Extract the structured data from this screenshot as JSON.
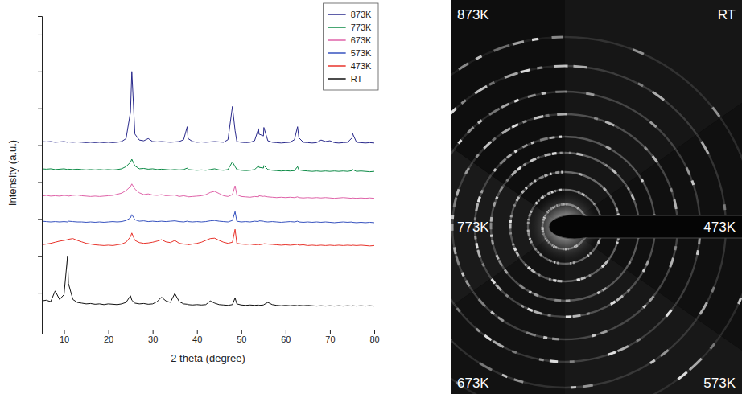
{
  "chart_data": {
    "type": "line",
    "xlabel": "2 theta (degree)",
    "ylabel": "Intensity (a.u.)",
    "xlim": [
      5,
      80
    ],
    "xticks": [
      10,
      20,
      30,
      40,
      50,
      60,
      70,
      80
    ],
    "ylim": [
      0,
      8.5
    ],
    "yticks": [
      1,
      2,
      3,
      4,
      5,
      6,
      7,
      8
    ],
    "tick_labels": "x",
    "grid": false,
    "legend": "upper right",
    "x": [
      5,
      6,
      7,
      8,
      9,
      10,
      10.8,
      11,
      12,
      13,
      14,
      15,
      16,
      17,
      18,
      19,
      20,
      21,
      22,
      23,
      24,
      25,
      25.3,
      26,
      27,
      28,
      29,
      30,
      31,
      32,
      33,
      34,
      35,
      36,
      37,
      37.8,
      38,
      39,
      40,
      41,
      42,
      43,
      44,
      45,
      46,
      47,
      48,
      48.6,
      49,
      50,
      51,
      52,
      53,
      53.9,
      54,
      55,
      55.1,
      56,
      57,
      58,
      59,
      60,
      61,
      62,
      62.7,
      63,
      64,
      65,
      66,
      67,
      68,
      69,
      70,
      71,
      72,
      73,
      74,
      75,
      75.1,
      76,
      77,
      78,
      79,
      80
    ],
    "series": [
      {
        "name": "873K",
        "color": "#2a2a8c",
        "values": [
          5.1,
          5.09,
          5.1,
          5.08,
          5.09,
          5.1,
          5.08,
          5.09,
          5.08,
          5.09,
          5.08,
          5.07,
          5.08,
          5.07,
          5.08,
          5.07,
          5.08,
          5.07,
          5.08,
          5.1,
          5.18,
          5.9,
          7.0,
          5.3,
          5.14,
          5.12,
          5.18,
          5.1,
          5.09,
          5.1,
          5.09,
          5.08,
          5.09,
          5.1,
          5.15,
          5.5,
          5.18,
          5.1,
          5.08,
          5.09,
          5.08,
          5.09,
          5.1,
          5.09,
          5.08,
          5.15,
          6.05,
          5.4,
          5.1,
          5.08,
          5.07,
          5.08,
          5.12,
          5.45,
          5.3,
          5.25,
          5.48,
          5.12,
          5.08,
          5.07,
          5.06,
          5.07,
          5.08,
          5.15,
          5.5,
          5.2,
          5.08,
          5.07,
          5.06,
          5.07,
          5.14,
          5.1,
          5.12,
          5.07,
          5.06,
          5.07,
          5.08,
          5.2,
          5.32,
          5.08,
          5.07,
          5.06,
          5.07,
          5.06
        ]
      },
      {
        "name": "773K",
        "color": "#0b8a45",
        "values": [
          4.36,
          4.35,
          4.36,
          4.34,
          4.35,
          4.36,
          4.34,
          4.35,
          4.34,
          4.35,
          4.34,
          4.33,
          4.34,
          4.33,
          4.34,
          4.33,
          4.34,
          4.33,
          4.34,
          4.36,
          4.42,
          4.54,
          4.62,
          4.44,
          4.36,
          4.37,
          4.35,
          4.36,
          4.34,
          4.35,
          4.34,
          4.33,
          4.34,
          4.33,
          4.34,
          4.38,
          4.34,
          4.33,
          4.32,
          4.33,
          4.32,
          4.34,
          4.36,
          4.33,
          4.32,
          4.34,
          4.55,
          4.42,
          4.34,
          4.32,
          4.31,
          4.32,
          4.34,
          4.44,
          4.4,
          4.38,
          4.45,
          4.34,
          4.32,
          4.31,
          4.3,
          4.31,
          4.3,
          4.31,
          4.42,
          4.33,
          4.31,
          4.3,
          4.29,
          4.3,
          4.29,
          4.3,
          4.29,
          4.3,
          4.29,
          4.3,
          4.29,
          4.31,
          4.34,
          4.29,
          4.3,
          4.29,
          4.28,
          4.29
        ]
      },
      {
        "name": "673K",
        "color": "#df62a8",
        "values": [
          3.62,
          3.64,
          3.62,
          3.63,
          3.62,
          3.64,
          3.63,
          3.62,
          3.64,
          3.65,
          3.63,
          3.62,
          3.61,
          3.62,
          3.61,
          3.62,
          3.63,
          3.64,
          3.67,
          3.7,
          3.77,
          3.88,
          3.95,
          3.81,
          3.71,
          3.66,
          3.68,
          3.65,
          3.64,
          3.66,
          3.63,
          3.64,
          3.65,
          3.61,
          3.63,
          3.61,
          3.6,
          3.61,
          3.62,
          3.63,
          3.66,
          3.72,
          3.75,
          3.69,
          3.63,
          3.61,
          3.66,
          3.9,
          3.66,
          3.61,
          3.6,
          3.59,
          3.61,
          3.6,
          3.63,
          3.61,
          3.62,
          3.6,
          3.59,
          3.58,
          3.59,
          3.58,
          3.59,
          3.58,
          3.6,
          3.58,
          3.57,
          3.58,
          3.57,
          3.58,
          3.57,
          3.58,
          3.57,
          3.56,
          3.57,
          3.58,
          3.57,
          3.56,
          3.57,
          3.56,
          3.57,
          3.56,
          3.57,
          3.56
        ]
      },
      {
        "name": "573K",
        "color": "#3652bf",
        "values": [
          2.94,
          2.93,
          2.92,
          2.93,
          2.92,
          2.93,
          2.92,
          2.94,
          2.93,
          2.92,
          2.92,
          2.91,
          2.92,
          2.91,
          2.92,
          2.91,
          2.92,
          2.93,
          2.92,
          2.93,
          2.96,
          3.03,
          3.12,
          2.98,
          2.94,
          2.95,
          2.93,
          2.94,
          2.93,
          2.94,
          2.93,
          2.94,
          2.95,
          2.93,
          2.92,
          2.94,
          2.93,
          2.92,
          2.93,
          2.92,
          2.93,
          2.95,
          2.96,
          2.94,
          2.93,
          2.92,
          2.96,
          3.2,
          2.94,
          2.92,
          2.93,
          2.92,
          2.94,
          2.93,
          2.95,
          2.94,
          2.93,
          2.92,
          2.93,
          2.92,
          2.91,
          2.92,
          2.93,
          2.92,
          2.94,
          2.92,
          2.91,
          2.92,
          2.91,
          2.92,
          2.91,
          2.92,
          2.91,
          2.9,
          2.91,
          2.92,
          2.91,
          2.92,
          2.91,
          2.9,
          2.91,
          2.9,
          2.91,
          2.9
        ]
      },
      {
        "name": "473K",
        "color": "#e8332b",
        "values": [
          2.3,
          2.32,
          2.34,
          2.37,
          2.4,
          2.42,
          2.44,
          2.45,
          2.47,
          2.42,
          2.38,
          2.34,
          2.32,
          2.3,
          2.29,
          2.28,
          2.29,
          2.28,
          2.3,
          2.32,
          2.37,
          2.52,
          2.62,
          2.42,
          2.36,
          2.34,
          2.35,
          2.37,
          2.4,
          2.44,
          2.38,
          2.36,
          2.42,
          2.34,
          2.32,
          2.31,
          2.3,
          2.32,
          2.34,
          2.37,
          2.42,
          2.47,
          2.48,
          2.42,
          2.37,
          2.34,
          2.37,
          2.72,
          2.34,
          2.32,
          2.31,
          2.32,
          2.3,
          2.31,
          2.3,
          2.32,
          2.33,
          2.32,
          2.31,
          2.3,
          2.29,
          2.3,
          2.29,
          2.3,
          2.31,
          2.29,
          2.3,
          2.28,
          2.29,
          2.28,
          2.29,
          2.28,
          2.29,
          2.28,
          2.29,
          2.28,
          2.29,
          2.28,
          2.29,
          2.28,
          2.29,
          2.28,
          2.27,
          2.28
        ]
      },
      {
        "name": "RT",
        "color": "#111111",
        "values": [
          0.78,
          0.8,
          0.76,
          1.05,
          0.82,
          0.95,
          2.0,
          1.25,
          0.82,
          0.74,
          0.72,
          0.7,
          0.71,
          0.69,
          0.7,
          0.68,
          0.7,
          0.69,
          0.68,
          0.7,
          0.74,
          0.92,
          0.8,
          0.72,
          0.7,
          0.71,
          0.69,
          0.7,
          0.76,
          0.88,
          0.78,
          0.74,
          0.98,
          0.76,
          0.7,
          0.69,
          0.68,
          0.67,
          0.68,
          0.67,
          0.68,
          0.78,
          0.72,
          0.68,
          0.67,
          0.66,
          0.68,
          0.86,
          0.7,
          0.67,
          0.66,
          0.67,
          0.66,
          0.67,
          0.66,
          0.67,
          0.68,
          0.74,
          0.68,
          0.66,
          0.65,
          0.66,
          0.65,
          0.66,
          0.65,
          0.66,
          0.65,
          0.66,
          0.65,
          0.64,
          0.65,
          0.64,
          0.65,
          0.64,
          0.65,
          0.64,
          0.65,
          0.64,
          0.65,
          0.64,
          0.65,
          0.64,
          0.65,
          0.64
        ]
      }
    ]
  },
  "diffraction_image": {
    "labels": [
      "873K",
      "RT",
      "773K",
      "473K",
      "673K",
      "573K"
    ]
  }
}
